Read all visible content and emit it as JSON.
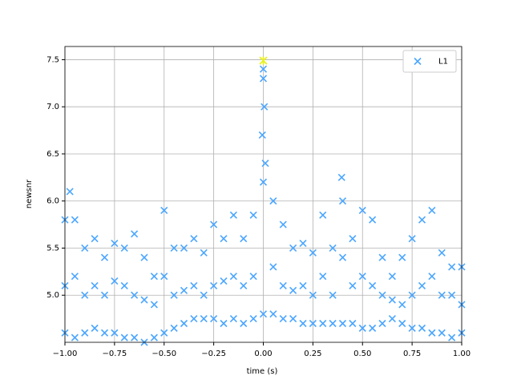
{
  "chart_data": {
    "type": "scatter",
    "xlabel": "time (s)",
    "ylabel": "newsnr",
    "xlim": [
      -1,
      1
    ],
    "ylim": [
      4.5,
      7.64
    ],
    "xticks": [
      {
        "value": -1,
        "label": "−1.00"
      },
      {
        "value": -0.75,
        "label": "−0.75"
      },
      {
        "value": -0.5,
        "label": "−0.50"
      },
      {
        "value": -0.25,
        "label": "−0.25"
      },
      {
        "value": 0,
        "label": "0.00"
      },
      {
        "value": 0.25,
        "label": "0.25"
      },
      {
        "value": 0.5,
        "label": "0.50"
      },
      {
        "value": 0.75,
        "label": "0.75"
      },
      {
        "value": 1,
        "label": "1.00"
      }
    ],
    "yticks": [
      {
        "value": 5,
        "label": "5.0"
      },
      5.5,
      {
        "value": 6,
        "label": "6.0"
      },
      6.5,
      {
        "value": 7,
        "label": "7.0"
      },
      7.5
    ],
    "grid": true,
    "legend": "upper right",
    "series": [
      {
        "name": "L1",
        "color": "#4ba6ff",
        "x": [
          -1,
          -0.95,
          -0.9,
          -0.85,
          -0.8,
          -0.75,
          -0.7,
          -0.65,
          -0.6,
          -0.55,
          -0.5,
          -0.45,
          -0.4,
          -0.35,
          -0.3,
          -0.25,
          -0.2,
          -0.15,
          -0.1,
          -0.05,
          0,
          0.05,
          0.1,
          0.15,
          0.2,
          0.25,
          0.3,
          0.35,
          0.4,
          0.45,
          0.5,
          0.55,
          0.6,
          0.65,
          0.7,
          0.75,
          0.8,
          0.85,
          0.9,
          0.95,
          1,
          -1,
          -0.95,
          -0.9,
          -0.85,
          -0.8,
          -0.75,
          -0.7,
          -0.65,
          -0.6,
          -0.55,
          -0.5,
          -0.45,
          -0.4,
          -0.35,
          -0.3,
          -0.25,
          -0.2,
          -0.15,
          -0.1,
          -0.05,
          0,
          0.05,
          0.1,
          0.15,
          0.2,
          0.25,
          0.3,
          0.35,
          0.4,
          0.45,
          0.5,
          0.55,
          0.6,
          0.65,
          0.7,
          0.75,
          0.8,
          0.85,
          0.9,
          0.95,
          1,
          -1,
          -0.95,
          -0.9,
          -0.85,
          -0.8,
          -0.75,
          -0.7,
          -0.65,
          -0.6,
          -0.55,
          -0.5,
          -0.45,
          -0.4,
          -0.35,
          -0.3,
          -0.25,
          -0.2,
          -0.15,
          -0.1,
          -0.05,
          0,
          0.05,
          0.1,
          0.15,
          0.2,
          0.25,
          0.3,
          0.35,
          0.4,
          0.45,
          0.5,
          0.55,
          0.6,
          0.65,
          0.7,
          0.75,
          0.8,
          0.85,
          0.9,
          0.95,
          1,
          0,
          0.005,
          -0.005,
          0.01,
          -0.975,
          0.395
        ],
        "y": [
          5.8,
          5.8,
          5.5,
          5.6,
          5.4,
          5.55,
          5.5,
          5.65,
          5.4,
          5.2,
          5.9,
          5.5,
          5.5,
          5.6,
          5.45,
          5.75,
          5.6,
          5.85,
          5.6,
          5.85,
          7.4,
          6.0,
          5.75,
          5.5,
          5.55,
          5.45,
          5.85,
          5.5,
          6.0,
          5.6,
          5.9,
          5.8,
          5.4,
          5.2,
          5.4,
          5.6,
          5.8,
          5.9,
          5.45,
          5.3,
          5.3,
          5.1,
          5.2,
          5.0,
          5.1,
          5.0,
          5.15,
          5.1,
          5.0,
          4.95,
          4.9,
          5.2,
          5.0,
          5.05,
          5.1,
          5.0,
          5.1,
          5.15,
          5.2,
          5.1,
          5.2,
          6.2,
          5.3,
          5.1,
          5.05,
          5.1,
          5.0,
          5.2,
          5.0,
          5.4,
          5.1,
          5.2,
          5.1,
          5.0,
          4.95,
          4.9,
          5.0,
          5.1,
          5.2,
          5.0,
          5.0,
          4.9,
          4.6,
          4.55,
          4.6,
          4.65,
          4.6,
          4.6,
          4.55,
          4.55,
          4.5,
          4.55,
          4.6,
          4.65,
          4.7,
          4.75,
          4.75,
          4.75,
          4.7,
          4.75,
          4.7,
          4.75,
          4.8,
          4.8,
          4.75,
          4.75,
          4.7,
          4.7,
          4.7,
          4.7,
          4.7,
          4.7,
          4.65,
          4.65,
          4.7,
          4.75,
          4.7,
          4.65,
          4.65,
          4.6,
          4.6,
          4.55,
          4.6,
          7.3,
          7.0,
          6.7,
          6.4,
          6.1,
          6.25
        ]
      }
    ],
    "highlight": {
      "x": 0,
      "y": 7.49,
      "color": "#e8f020"
    }
  }
}
